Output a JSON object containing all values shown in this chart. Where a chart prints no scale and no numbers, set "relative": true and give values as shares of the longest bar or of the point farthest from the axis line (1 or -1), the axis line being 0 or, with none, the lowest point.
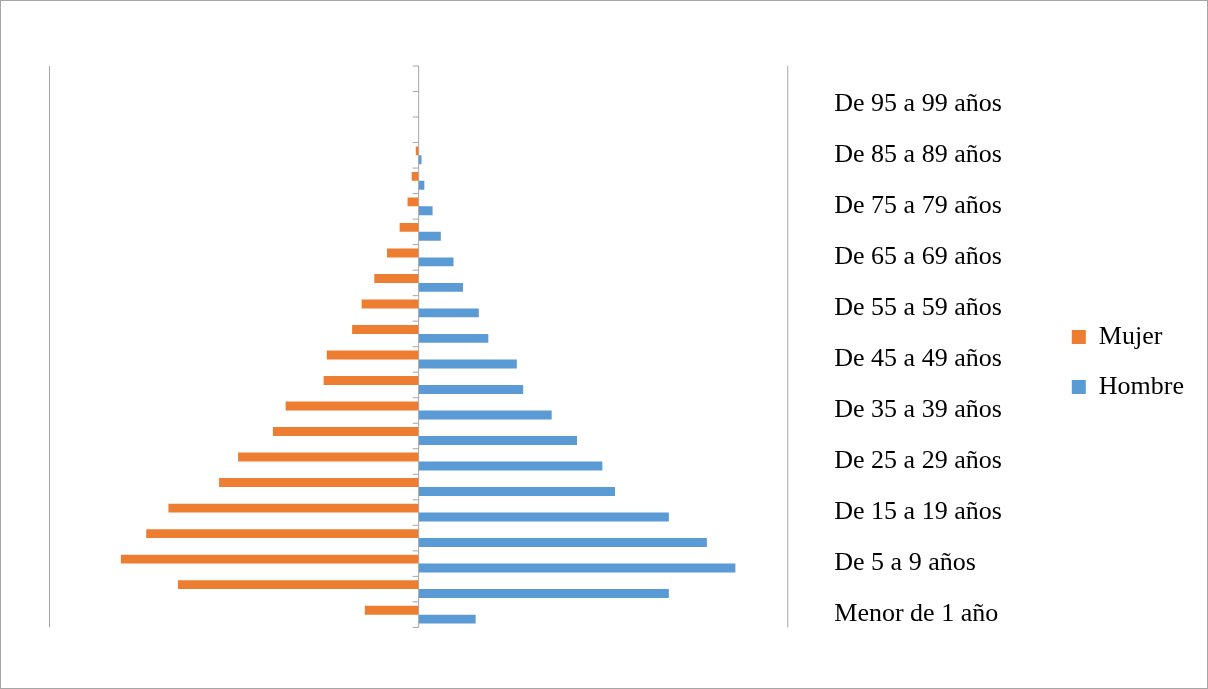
{
  "chart_data": {
    "type": "bar",
    "orientation": "horizontal",
    "relative": true,
    "legend": "right",
    "categories": [
      null,
      "De 95 a 99 años",
      null,
      "De 85 a 89 años",
      null,
      "De 75 a 79 años",
      null,
      "De 65 a 69 años",
      null,
      "De 55 a 59 años",
      null,
      "De 45 a 49 años",
      null,
      "De 35 a 39 años",
      null,
      "De 25 a 29 años",
      null,
      "De 15 a 19 años",
      null,
      "De 5 a 9 años",
      null,
      "Menor de 1 año"
    ],
    "series": [
      {
        "name": "Mujer",
        "color": "#ed7d31",
        "values": [
          0,
          0,
          0,
          -0.009,
          -0.022,
          -0.035,
          -0.06,
          -0.1,
          -0.14,
          -0.18,
          -0.21,
          -0.29,
          -0.3,
          -0.42,
          -0.46,
          -0.57,
          -0.63,
          -0.79,
          -0.86,
          -0.94,
          -0.76,
          -0.17
        ]
      },
      {
        "name": "Hombre",
        "color": "#5b9bd5",
        "values": [
          0,
          0,
          0,
          0.009,
          0.018,
          0.044,
          0.07,
          0.11,
          0.14,
          0.19,
          0.22,
          0.31,
          0.33,
          0.42,
          0.5,
          0.58,
          0.62,
          0.79,
          0.91,
          1,
          0.79,
          0.18
        ]
      }
    ]
  }
}
